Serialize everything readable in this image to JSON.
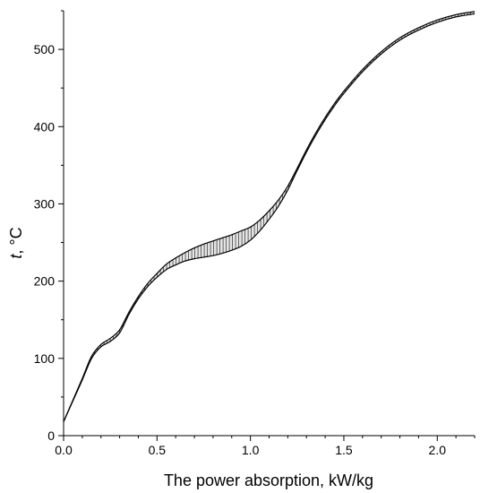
{
  "chart_data": {
    "type": "area",
    "title": "",
    "xlabel": "The power absorption, kW/kg",
    "ylabel_italic": "t",
    "ylabel_rest": ", °C",
    "xlim": [
      0.0,
      2.2
    ],
    "ylim": [
      0,
      550
    ],
    "x_ticks": [
      0.0,
      0.5,
      1.0,
      1.5,
      2.0
    ],
    "x_tick_labels": [
      "0.0",
      "0.5",
      "1.0",
      "1.5",
      "2.0"
    ],
    "y_ticks": [
      0,
      100,
      200,
      300,
      400,
      500
    ],
    "y_tick_labels": [
      "0",
      "100",
      "200",
      "300",
      "400",
      "500"
    ],
    "grid": false,
    "band_fill": "hatched",
    "series": [
      {
        "x": [
          0.0,
          0.05,
          0.1,
          0.15,
          0.2,
          0.25,
          0.3,
          0.35,
          0.4,
          0.45,
          0.5,
          0.55,
          0.6,
          0.65,
          0.7,
          0.75,
          0.8,
          0.85,
          0.9,
          0.95,
          1.0,
          1.05,
          1.1,
          1.15,
          1.2,
          1.25,
          1.3,
          1.35,
          1.4,
          1.45,
          1.5,
          1.6,
          1.7,
          1.8,
          1.9,
          2.0,
          2.1,
          2.2
        ],
        "values": [
          18,
          45,
          72,
          100,
          115,
          122,
          133,
          157,
          177,
          193,
          205,
          215,
          221,
          226,
          229,
          231,
          233,
          236,
          240,
          245,
          253,
          265,
          280,
          297,
          318,
          343,
          367,
          389,
          409,
          427,
          443,
          471,
          494,
          512,
          525,
          535,
          542,
          546
        ]
      },
      {
        "x": [
          0.0,
          0.05,
          0.1,
          0.15,
          0.2,
          0.25,
          0.3,
          0.35,
          0.4,
          0.45,
          0.5,
          0.55,
          0.6,
          0.65,
          0.7,
          0.75,
          0.8,
          0.85,
          0.9,
          0.95,
          1.0,
          1.05,
          1.1,
          1.15,
          1.2,
          1.25,
          1.3,
          1.35,
          1.4,
          1.45,
          1.5,
          1.6,
          1.7,
          1.8,
          1.9,
          2.0,
          2.1,
          2.2
        ],
        "values": [
          18,
          46,
          74,
          103,
          118,
          126,
          137,
          160,
          180,
          197,
          210,
          222,
          230,
          237,
          243,
          248,
          252,
          256,
          260,
          265,
          270,
          279,
          291,
          305,
          323,
          346,
          370,
          392,
          412,
          430,
          446,
          474,
          497,
          515,
          528,
          538,
          545,
          549
        ]
      }
    ]
  }
}
